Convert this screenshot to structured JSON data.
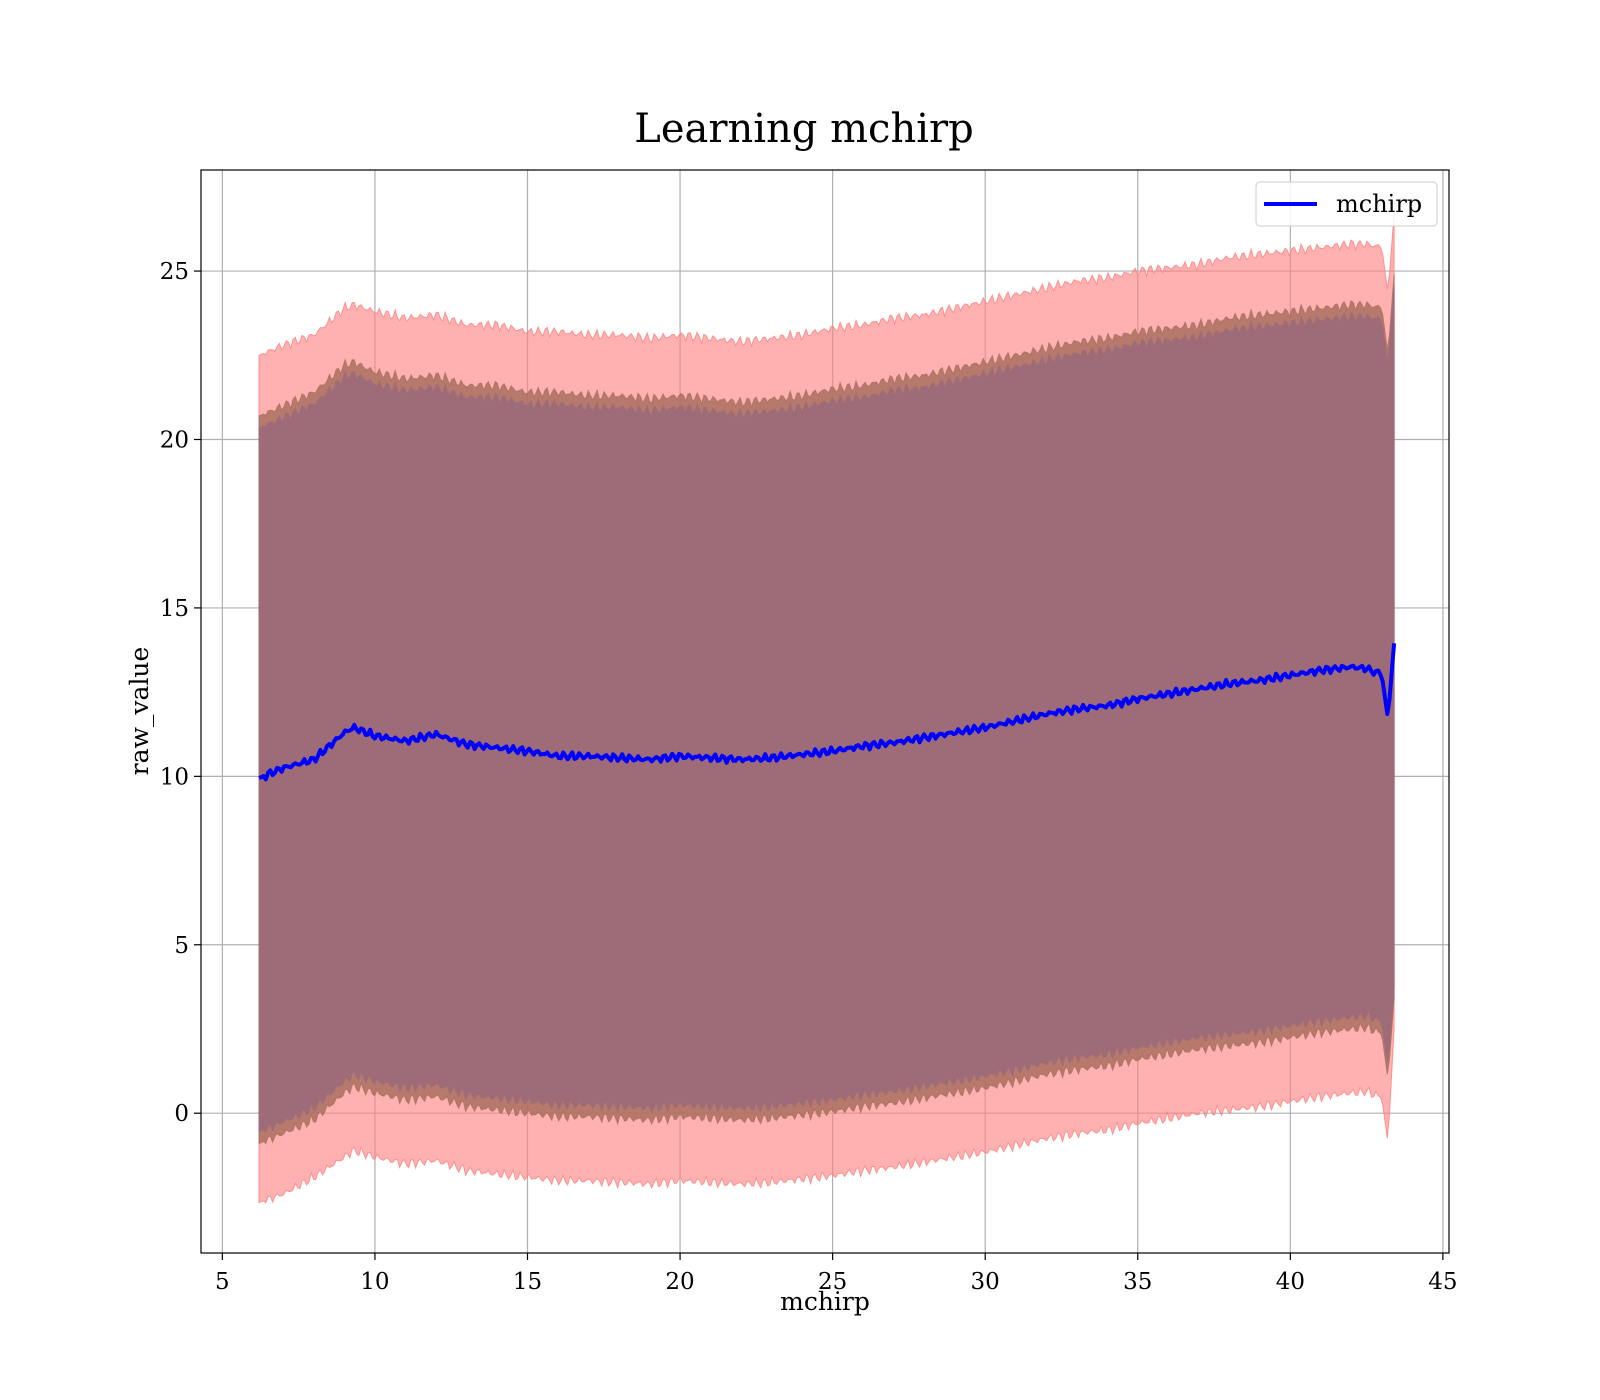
{
  "chart_data": {
    "type": "area",
    "title": "Learning mchirp",
    "xlabel": "mchirp",
    "ylabel": "raw_value",
    "xlim": [
      4.3,
      45.2
    ],
    "ylim": [
      -4.15,
      28.0
    ],
    "xticks": [
      5,
      10,
      15,
      20,
      25,
      30,
      35,
      40,
      45
    ],
    "yticks": [
      0,
      5,
      10,
      15,
      20,
      25
    ],
    "grid": true,
    "legend": {
      "entries": [
        "mchirp"
      ],
      "placement": "top-right"
    },
    "colors": {
      "line": "#0000ff",
      "outer_band": "#ff8080",
      "middle_band": "#a97060",
      "inner_band": "#9e6c78",
      "grid": "#b0b0b0"
    },
    "series": [
      {
        "name": "mchirp",
        "x": [
          6.2,
          7,
          8,
          9,
          9.3,
          10,
          11,
          12,
          13,
          14,
          15,
          16,
          17,
          18,
          19,
          20,
          21,
          22,
          23,
          24,
          25,
          26,
          27,
          28,
          29,
          30,
          31,
          32,
          33,
          34,
          35,
          36,
          37,
          38,
          39,
          40,
          41,
          42,
          42.5,
          43,
          43.2,
          43.4
        ],
        "y": [
          9.95,
          10.25,
          10.5,
          11.3,
          11.45,
          11.2,
          11.05,
          11.25,
          10.95,
          10.85,
          10.75,
          10.6,
          10.6,
          10.55,
          10.5,
          10.6,
          10.55,
          10.5,
          10.55,
          10.65,
          10.75,
          10.9,
          11.0,
          11.15,
          11.3,
          11.45,
          11.65,
          11.85,
          12.0,
          12.1,
          12.3,
          12.45,
          12.6,
          12.75,
          12.85,
          13.0,
          13.15,
          13.25,
          13.2,
          13.0,
          11.7,
          13.95
        ]
      }
    ],
    "bands": [
      {
        "role": "outer",
        "x": [
          6.2,
          7,
          8,
          9,
          9.3,
          10,
          11,
          12,
          13,
          14,
          15,
          16,
          17,
          18,
          19,
          20,
          21,
          22,
          23,
          24,
          25,
          26,
          27,
          28,
          29,
          30,
          31,
          32,
          33,
          34,
          35,
          36,
          37,
          38,
          39,
          40,
          41,
          42,
          42.5,
          43,
          43.2,
          43.4
        ],
        "upper": [
          22.5,
          22.8,
          23.1,
          23.9,
          24.0,
          23.8,
          23.6,
          23.7,
          23.4,
          23.4,
          23.2,
          23.2,
          23.1,
          23.1,
          23.0,
          23.1,
          23.0,
          22.9,
          23.0,
          23.1,
          23.3,
          23.4,
          23.6,
          23.7,
          23.9,
          24.1,
          24.3,
          24.5,
          24.7,
          24.8,
          25.0,
          25.1,
          25.2,
          25.4,
          25.5,
          25.6,
          25.7,
          25.8,
          25.8,
          25.7,
          24.3,
          26.7
        ],
        "lower": [
          -2.65,
          -2.4,
          -1.9,
          -1.3,
          -1.1,
          -1.3,
          -1.5,
          -1.4,
          -1.7,
          -1.8,
          -1.9,
          -2.0,
          -2.0,
          -2.05,
          -2.1,
          -2.0,
          -2.05,
          -2.1,
          -2.05,
          -1.95,
          -1.85,
          -1.7,
          -1.6,
          -1.45,
          -1.3,
          -1.15,
          -0.95,
          -0.75,
          -0.6,
          -0.5,
          -0.3,
          -0.15,
          0.0,
          0.1,
          0.2,
          0.35,
          0.5,
          0.6,
          0.65,
          0.45,
          -0.9,
          2.5
        ]
      },
      {
        "role": "middle",
        "x": [
          6.2,
          7,
          8,
          9,
          9.3,
          10,
          11,
          12,
          13,
          14,
          15,
          16,
          17,
          18,
          19,
          20,
          21,
          22,
          23,
          24,
          25,
          26,
          27,
          28,
          29,
          30,
          31,
          32,
          33,
          34,
          35,
          36,
          37,
          38,
          39,
          40,
          41,
          42,
          42.5,
          43,
          43.2,
          43.4
        ],
        "upper": [
          20.7,
          21.0,
          21.4,
          22.2,
          22.3,
          22.0,
          21.8,
          21.9,
          21.6,
          21.6,
          21.4,
          21.4,
          21.3,
          21.3,
          21.2,
          21.3,
          21.2,
          21.1,
          21.2,
          21.3,
          21.5,
          21.6,
          21.8,
          21.9,
          22.1,
          22.3,
          22.5,
          22.7,
          22.9,
          23.0,
          23.2,
          23.3,
          23.4,
          23.6,
          23.7,
          23.8,
          23.9,
          24.0,
          24.0,
          23.9,
          22.5,
          24.9
        ],
        "lower": [
          -0.9,
          -0.6,
          -0.2,
          0.6,
          0.8,
          0.6,
          0.4,
          0.5,
          0.2,
          0.1,
          0.0,
          -0.1,
          -0.1,
          -0.15,
          -0.2,
          -0.1,
          -0.15,
          -0.2,
          -0.15,
          -0.05,
          0.05,
          0.2,
          0.3,
          0.45,
          0.6,
          0.75,
          0.95,
          1.15,
          1.3,
          1.4,
          1.6,
          1.75,
          1.9,
          2.0,
          2.1,
          2.25,
          2.4,
          2.5,
          2.55,
          2.35,
          1.0,
          3.4
        ]
      },
      {
        "role": "inner",
        "x": [
          6.2,
          7,
          8,
          9,
          9.3,
          10,
          11,
          12,
          13,
          14,
          15,
          16,
          17,
          18,
          19,
          20,
          21,
          22,
          23,
          24,
          25,
          26,
          27,
          28,
          29,
          30,
          31,
          32,
          33,
          34,
          35,
          36,
          37,
          38,
          39,
          40,
          41,
          42,
          42.5,
          43,
          43.2,
          43.4
        ],
        "upper": [
          20.35,
          20.65,
          21.05,
          21.85,
          21.95,
          21.65,
          21.45,
          21.55,
          21.25,
          21.25,
          21.05,
          21.05,
          20.95,
          20.95,
          20.85,
          20.95,
          20.85,
          20.75,
          20.85,
          20.95,
          21.15,
          21.25,
          21.45,
          21.55,
          21.75,
          21.95,
          22.15,
          22.35,
          22.55,
          22.65,
          22.85,
          22.95,
          23.05,
          23.25,
          23.35,
          23.45,
          23.55,
          23.65,
          23.65,
          23.55,
          22.15,
          24.55
        ],
        "lower": [
          -0.55,
          -0.25,
          0.15,
          0.95,
          1.15,
          0.95,
          0.75,
          0.85,
          0.55,
          0.45,
          0.35,
          0.25,
          0.25,
          0.2,
          0.15,
          0.25,
          0.2,
          0.15,
          0.2,
          0.3,
          0.4,
          0.55,
          0.65,
          0.8,
          0.95,
          1.1,
          1.3,
          1.5,
          1.65,
          1.75,
          1.95,
          2.1,
          2.25,
          2.35,
          2.45,
          2.6,
          2.75,
          2.85,
          2.9,
          2.7,
          1.35,
          3.75
        ]
      }
    ]
  }
}
